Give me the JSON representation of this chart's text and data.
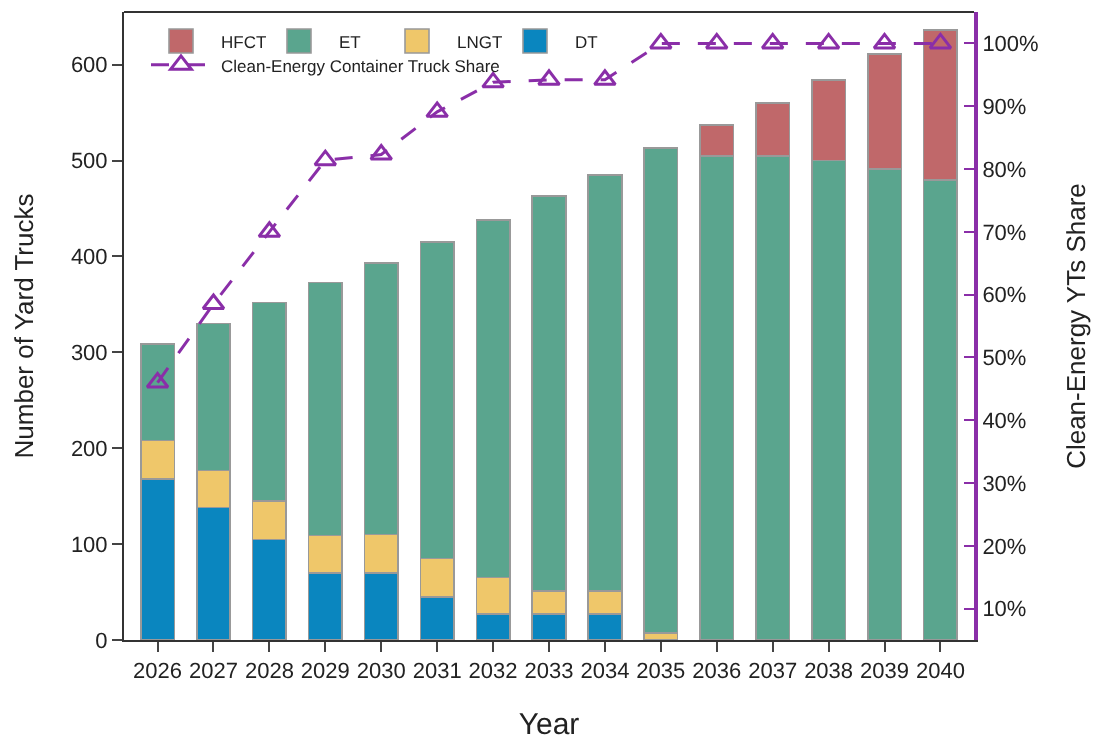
{
  "chart_data": {
    "type": "bar",
    "stacked": true,
    "xlabel": "Year",
    "ylabel": "Number of Yard Trucks",
    "y2label": "Clean-Energy YTs Share",
    "categories": [
      "2026",
      "2027",
      "2028",
      "2029",
      "2030",
      "2031",
      "2032",
      "2033",
      "2034",
      "2035",
      "2036",
      "2037",
      "2038",
      "2039",
      "2040"
    ],
    "series": [
      {
        "name": "DT",
        "color": "#0a86bf",
        "values": [
          168,
          138,
          105,
          70,
          70,
          45,
          27,
          27,
          27,
          null,
          null,
          null,
          null,
          null,
          null
        ]
      },
      {
        "name": "LNGT",
        "color": "#efc76a",
        "values": [
          40,
          39,
          40,
          39,
          40,
          40,
          38,
          24,
          24,
          7,
          null,
          null,
          null,
          null,
          null
        ]
      },
      {
        "name": "ET",
        "color": "#5aa58e",
        "values": [
          101,
          153,
          207,
          264,
          283,
          330,
          373,
          412,
          434,
          506,
          505,
          505,
          500,
          491,
          480
        ]
      },
      {
        "name": "HFCT",
        "color": "#c0686a",
        "values": [
          null,
          null,
          null,
          null,
          null,
          null,
          null,
          null,
          null,
          null,
          32,
          55,
          84,
          120,
          156
        ]
      },
      {
        "name": "Clean-Energy Container Truck Share",
        "type": "line",
        "axis": "y2",
        "color": "#8a2ea8",
        "marker": "triangle",
        "line_style": "dashed",
        "values": [
          46,
          58.5,
          70,
          81.4,
          82.3,
          89.1,
          93.8,
          94.2,
          94.2,
          100,
          100,
          100,
          100,
          100,
          100
        ]
      }
    ],
    "ylim": [
      0,
      655
    ],
    "yticks": [
      0,
      100,
      200,
      300,
      400,
      500,
      600
    ],
    "y2lim": [
      5,
      105
    ],
    "y2ticks": [
      {
        "value": 10,
        "label": "10%"
      },
      {
        "value": 20,
        "label": "20%"
      },
      {
        "value": 30,
        "label": "30%"
      },
      {
        "value": 40,
        "label": "40%"
      },
      {
        "value": 50,
        "label": "50%"
      },
      {
        "value": 60,
        "label": "60%"
      },
      {
        "value": 70,
        "label": "70%"
      },
      {
        "value": 80,
        "label": "80%"
      },
      {
        "value": 90,
        "label": "90%"
      },
      {
        "value": 100,
        "label": "100%"
      }
    ],
    "legend": "top left"
  }
}
